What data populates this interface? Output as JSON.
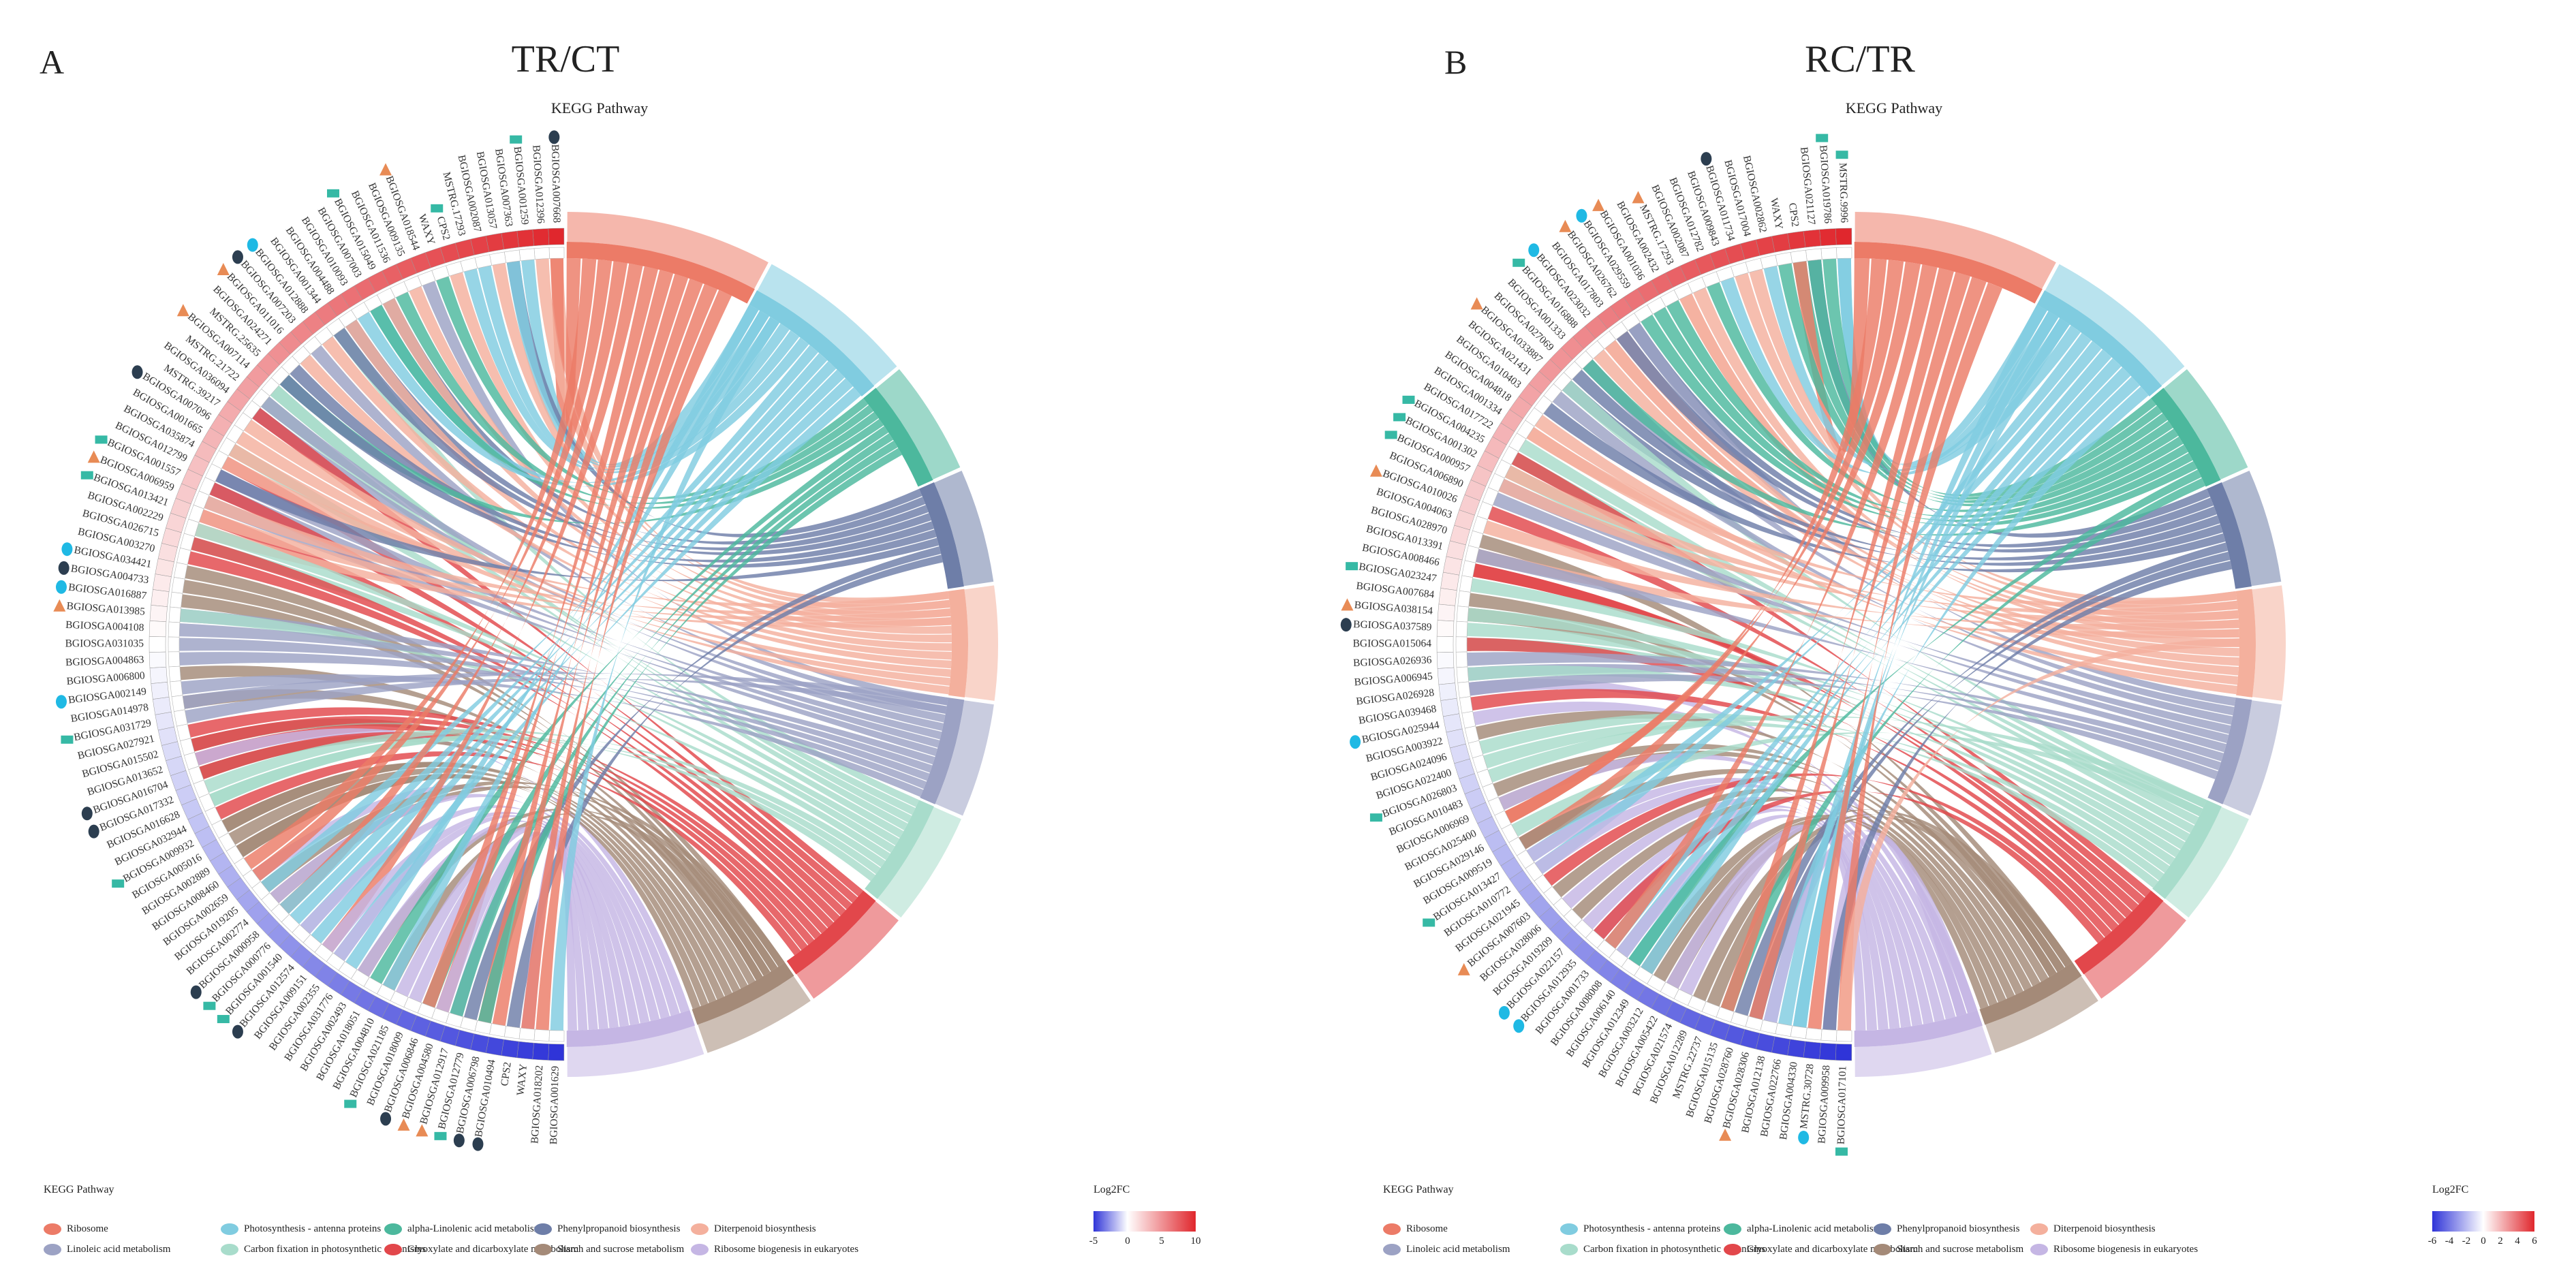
{
  "colors": {
    "pathways": [
      "#ec7b67",
      "#80cce0",
      "#4cb89d",
      "#6e7ea8",
      "#f4b09d",
      "#9ca2c4",
      "#a8dccb",
      "#e2474b",
      "#a48a78",
      "#c5b6e4"
    ],
    "fc_neg": "#2f34d8",
    "fc_mid": "#ffffff",
    "fc_pos": "#e0272d",
    "marker_square": "#36b9a5",
    "marker_triangle": "#e88b55",
    "marker_circle_light": "#1fb9e4",
    "marker_circle_dark": "#2c3e50"
  },
  "chart_data": [
    {
      "type": "chord",
      "panel_label": "A",
      "title": "TR/CT",
      "subtitle": "KEGG Pathway",
      "pathways": [
        "Ribosome",
        "Photosynthesis - antenna proteins",
        "alpha-Linolenic acid metabolism",
        "Phenylpropanoid biosynthesis",
        "Diterpenoid biosynthesis",
        "Linoleic acid metabolism",
        "Carbon fixation in photosynthetic organisms",
        "Glyoxylate and dicarboxylate metabolism",
        "Starch and sucrose metabolism",
        "Ribosome biogenesis in eukaryotes"
      ],
      "pathway_sizes": [
        9,
        7,
        5,
        5,
        5,
        5,
        5,
        5,
        5,
        6
      ],
      "genes": [
        "BGIOSGA007668",
        "BGIOSGA012396",
        "BGIOSGA001259",
        "BGIOSGA007363",
        "BGIOSGA013057",
        "BGIOSGA002087",
        "MSTRG.17293",
        "CPS2",
        "WAXY",
        "BGIOSGA018544",
        "BGIOSGA009135",
        "BGIOSGA011536",
        "BGIOSGA015049",
        "BGIOSGA007003",
        "BGIOSGA010093",
        "BGIOSGA004488",
        "BGIOSGA001344",
        "BGIOSGA012888",
        "BGIOSGA007203",
        "BGIOSGA011016",
        "BGIOSGA024271",
        "MSTRG.25635",
        "BGIOSGA007114",
        "MSTRG.21722",
        "BGIOSGA036094",
        "MSTRG.39217",
        "BGIOSGA007096",
        "BGIOSGA001665",
        "BGIOSGA035874",
        "BGIOSGA012799",
        "BGIOSGA001557",
        "BGIOSGA006959",
        "BGIOSGA013421",
        "BGIOSGA002229",
        "BGIOSGA026715",
        "BGIOSGA003270",
        "BGIOSGA034421",
        "BGIOSGA004733",
        "BGIOSGA016887",
        "BGIOSGA013985",
        "BGIOSGA004108",
        "BGIOSGA031035",
        "BGIOSGA004863",
        "BGIOSGA006800",
        "BGIOSGA002149",
        "BGIOSGA014978",
        "BGIOSGA031729",
        "BGIOSGA027921",
        "BGIOSGA015502",
        "BGIOSGA013652",
        "BGIOSGA016704",
        "BGIOSGA017332",
        "BGIOSGA016628",
        "BGIOSGA032944",
        "BGIOSGA009932",
        "BGIOSGA005016",
        "BGIOSGA002889",
        "BGIOSGA008460",
        "BGIOSGA002659",
        "BGIOSGA019205",
        "BGIOSGA002774",
        "BGIOSGA000958",
        "BGIOSGA000776",
        "BGIOSGA001540",
        "BGIOSGA012574",
        "BGIOSGA009151",
        "BGIOSGA002355",
        "BGIOSGA031776",
        "BGIOSGA002493",
        "BGIOSGA018051",
        "BGIOSGA004810",
        "BGIOSGA021185",
        "BGIOSGA018009",
        "BGIOSGA006846",
        "BGIOSGA004580",
        "BGIOSGA012917",
        "BGIOSGA012779",
        "BGIOSGA006798",
        "BGIOSGA010494",
        "CPS2",
        "WAXY",
        "BGIOSGA018202",
        "BGIOSGA001629"
      ],
      "log2fc_legend": {
        "title": "Log2FC",
        "ticks": [
          "-5",
          "0",
          "5",
          "10"
        ],
        "range": [
          -5,
          10
        ]
      }
    },
    {
      "type": "chord",
      "panel_label": "B",
      "title": "RC/TR",
      "subtitle": "KEGG Pathway",
      "pathways": [
        "Ribosome",
        "Photosynthesis - antenna proteins",
        "alpha-Linolenic acid metabolism",
        "Phenylpropanoid biosynthesis",
        "Diterpenoid biosynthesis",
        "Linoleic acid metabolism",
        "Carbon fixation in photosynthetic organisms",
        "Glyoxylate and dicarboxylate metabolism",
        "Starch and sucrose metabolism",
        "Ribosome biogenesis in eukaryotes"
      ],
      "pathway_sizes": [
        9,
        7,
        5,
        5,
        5,
        5,
        5,
        5,
        5,
        6
      ],
      "genes": [
        "MSTRG.9996",
        "BGIOSGA019786",
        "BGIOSGA021127",
        "CPS2",
        "WAXY",
        "BGIOSGA002862",
        "BGIOSGA017004",
        "BGIOSGA011734",
        "BGIOSGA009843",
        "BGIOSGA012782",
        "BGIOSGA002087",
        "MSTRG.17293",
        "BGIOSGA002432",
        "BGIOSGA001036",
        "BGIOSGA029559",
        "BGIOSGA026762",
        "BGIOSGA017803",
        "BGIOSGA023032",
        "BGIOSGA016888",
        "BGIOSGA001333",
        "BGIOSGA027069",
        "BGIOSGA033887",
        "BGIOSGA021431",
        "BGIOSGA010403",
        "BGIOSGA004818",
        "BGIOSGA001334",
        "BGIOSGA017722",
        "BGIOSGA004235",
        "BGIOSGA001302",
        "BGIOSGA000957",
        "BGIOSGA006890",
        "BGIOSGA010026",
        "BGIOSGA004063",
        "BGIOSGA028970",
        "BGIOSGA013391",
        "BGIOSGA008466",
        "BGIOSGA023247",
        "BGIOSGA007684",
        "BGIOSGA038154",
        "BGIOSGA037589",
        "BGIOSGA015064",
        "BGIOSGA026936",
        "BGIOSGA006945",
        "BGIOSGA026928",
        "BGIOSGA039468",
        "BGIOSGA025944",
        "BGIOSGA003922",
        "BGIOSGA024096",
        "BGIOSGA022400",
        "BGIOSGA026803",
        "BGIOSGA010483",
        "BGIOSGA006969",
        "BGIOSGA025400",
        "BGIOSGA029146",
        "BGIOSGA009519",
        "BGIOSGA013427",
        "BGIOSGA010772",
        "BGIOSGA021945",
        "BGIOSGA007603",
        "BGIOSGA028006",
        "BGIOSGA019209",
        "BGIOSGA022157",
        "BGIOSGA012935",
        "BGIOSGA001733",
        "BGIOSGA008008",
        "BGIOSGA006140",
        "BGIOSGA012349",
        "BGIOSGA003212",
        "BGIOSGA005422",
        "BGIOSGA021574",
        "BGIOSGA012289",
        "MSTRG.22737",
        "BGIOSGA015135",
        "BGIOSGA028760",
        "BGIOSGA028306",
        "BGIOSGA012138",
        "BGIOSGA022766",
        "BGIOSGA004330",
        "MSTRG.30728",
        "BGIOSGA009958",
        "BGIOSGA017101"
      ],
      "log2fc_legend": {
        "title": "Log2FC",
        "ticks": [
          "-6",
          "-4",
          "-2",
          "0",
          "2",
          "4",
          "6"
        ],
        "range": [
          -6,
          6
        ]
      }
    }
  ],
  "legend": {
    "title": "KEGG Pathway"
  }
}
